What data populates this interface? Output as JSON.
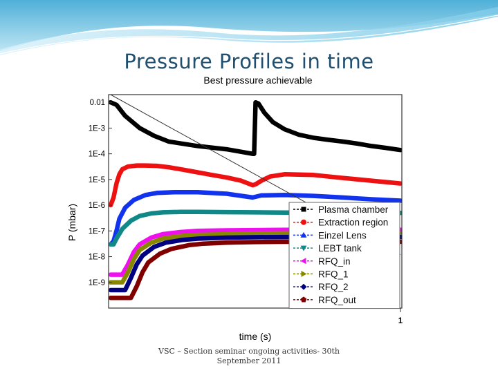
{
  "slide": {
    "title": "Pressure Profiles in time",
    "footer": "VSC – Section seminar ongoing activities- 30th September 2011"
  },
  "chart_data": {
    "type": "line",
    "title": "Best pressure achievable",
    "xlabel": "time (s)",
    "ylabel": "P (mbar)",
    "xlim": [
      0,
      1
    ],
    "ylim": [
      1e-10,
      0.02
    ],
    "yscale": "log",
    "xticks": [
      {
        "value": 1,
        "label": "1"
      }
    ],
    "yticks": [
      {
        "value": 0.01,
        "label": "0.01"
      },
      {
        "value": 0.001,
        "label": "1E-3"
      },
      {
        "value": 0.0001,
        "label": "1E-4"
      },
      {
        "value": 1e-05,
        "label": "1E-5"
      },
      {
        "value": 1e-06,
        "label": "1E-6"
      },
      {
        "value": 1e-07,
        "label": "1E-7"
      },
      {
        "value": 1e-08,
        "label": "1E-8"
      },
      {
        "value": 1e-09,
        "label": "1E-9"
      }
    ],
    "grid": false,
    "legend_position": "bottom-right",
    "reference_line": {
      "x": [
        0,
        1
      ],
      "y": [
        0.02,
        1.2e-08
      ],
      "color": "#333333"
    },
    "series": [
      {
        "name": "Plasma chamber",
        "color": "#000000",
        "marker": "square",
        "x": [
          0,
          0.02,
          0.05,
          0.1,
          0.15,
          0.2,
          0.3,
          0.4,
          0.49,
          0.495,
          0.5,
          0.51,
          0.53,
          0.56,
          0.6,
          0.65,
          0.7,
          0.75,
          0.8,
          0.85,
          0.9,
          0.95,
          1.0
        ],
        "y": [
          0.01,
          0.008,
          0.003,
          0.001,
          0.0005,
          0.0003,
          0.0002,
          0.00015,
          0.0001,
          0.0001,
          0.01,
          0.009,
          0.004,
          0.0017,
          0.0009,
          0.00055,
          0.00042,
          0.00035,
          0.0003,
          0.00025,
          0.0002,
          0.00017,
          0.00014
        ]
      },
      {
        "name": "Extraction region",
        "color": "#ee1111",
        "marker": "circle",
        "x": [
          0,
          0.01,
          0.02,
          0.03,
          0.04,
          0.06,
          0.09,
          0.12,
          0.16,
          0.2,
          0.25,
          0.3,
          0.35,
          0.4,
          0.45,
          0.49,
          0.5,
          0.52,
          0.55,
          0.6,
          0.7,
          0.8,
          0.9,
          1.0
        ],
        "y": [
          1e-06,
          2e-06,
          7e-06,
          1.6e-05,
          2.5e-05,
          3.2e-05,
          3.5e-05,
          3.5e-05,
          3.4e-05,
          3e-05,
          2.4e-05,
          1.9e-05,
          1.5e-05,
          1.2e-05,
          9e-06,
          6e-06,
          6.5e-06,
          9e-06,
          1.3e-05,
          1.6e-05,
          1.5e-05,
          1.15e-05,
          9e-06,
          7e-06
        ]
      },
      {
        "name": "Einzel Lens",
        "color": "#1133ee",
        "marker": "triangle-up",
        "x": [
          0,
          0.01,
          0.02,
          0.03,
          0.05,
          0.08,
          0.12,
          0.16,
          0.22,
          0.3,
          0.4,
          0.49,
          0.52,
          0.6,
          0.7,
          0.8,
          0.9,
          1.0
        ],
        "y": [
          3e-08,
          4e-08,
          1e-07,
          3e-07,
          8e-07,
          1.6e-06,
          2.5e-06,
          3e-06,
          3.2e-06,
          3.2e-06,
          2.8e-06,
          2e-06,
          2.4e-06,
          2.5e-06,
          2.3e-06,
          2e-06,
          1.7e-06,
          1.5e-06
        ]
      },
      {
        "name": "LEBT tank",
        "color": "#118888",
        "marker": "triangle-down",
        "x": [
          0,
          0.01,
          0.02,
          0.04,
          0.07,
          0.1,
          0.14,
          0.18,
          0.24,
          0.3,
          0.4,
          0.5,
          0.6,
          0.8,
          1.0
        ],
        "y": [
          3e-08,
          3e-08,
          5e-08,
          1.2e-07,
          2.5e-07,
          3.8e-07,
          4.8e-07,
          5.3e-07,
          5.5e-07,
          5.5e-07,
          5.4e-07,
          5.3e-07,
          5.2e-07,
          5.1e-07,
          5e-07
        ]
      },
      {
        "name": "RFQ_in",
        "color": "#ee11ee",
        "marker": "triangle-left",
        "x": [
          0,
          0.04,
          0.06,
          0.08,
          0.1,
          0.14,
          0.18,
          0.24,
          0.3,
          0.4,
          0.5,
          0.6,
          0.8,
          1.0
        ],
        "y": [
          2e-09,
          2e-09,
          5e-09,
          1.5e-08,
          3e-08,
          5.5e-08,
          7.5e-08,
          9e-08,
          1e-07,
          1.05e-07,
          1.08e-07,
          1.1e-07,
          1.1e-07,
          1.1e-07
        ]
      },
      {
        "name": "RFQ_1",
        "color": "#888800",
        "marker": "triangle-right",
        "x": [
          0,
          0.04,
          0.06,
          0.08,
          0.1,
          0.14,
          0.18,
          0.24,
          0.3,
          0.4,
          0.5,
          0.6,
          0.8,
          1.0
        ],
        "y": [
          1e-09,
          1e-09,
          2.5e-09,
          8e-09,
          1.8e-08,
          3.5e-08,
          5e-08,
          6.3e-08,
          7e-08,
          7.5e-08,
          7.8e-08,
          8e-08,
          8e-08,
          8e-08
        ]
      },
      {
        "name": "RFQ_2",
        "color": "#000080",
        "marker": "diamond",
        "x": [
          0,
          0.05,
          0.07,
          0.09,
          0.11,
          0.15,
          0.19,
          0.25,
          0.3,
          0.4,
          0.5,
          0.6,
          0.8,
          1.0
        ],
        "y": [
          5e-10,
          5e-10,
          1.5e-09,
          5e-09,
          1.1e-08,
          2.4e-08,
          3.5e-08,
          4.5e-08,
          5e-08,
          5.5e-08,
          5.7e-08,
          5.8e-08,
          5.8e-08,
          5.8e-08
        ]
      },
      {
        "name": "RFQ_out",
        "color": "#800000",
        "marker": "pentagon",
        "x": [
          0,
          0.07,
          0.09,
          0.11,
          0.13,
          0.17,
          0.21,
          0.27,
          0.32,
          0.4,
          0.5,
          0.6,
          0.8,
          1.0
        ],
        "y": [
          2.5e-10,
          2.5e-10,
          7e-10,
          2.5e-09,
          6e-09,
          1.3e-08,
          2e-08,
          2.8e-08,
          3.2e-08,
          3.5e-08,
          3.7e-08,
          3.8e-08,
          3.8e-08,
          3.8e-08
        ]
      }
    ]
  }
}
